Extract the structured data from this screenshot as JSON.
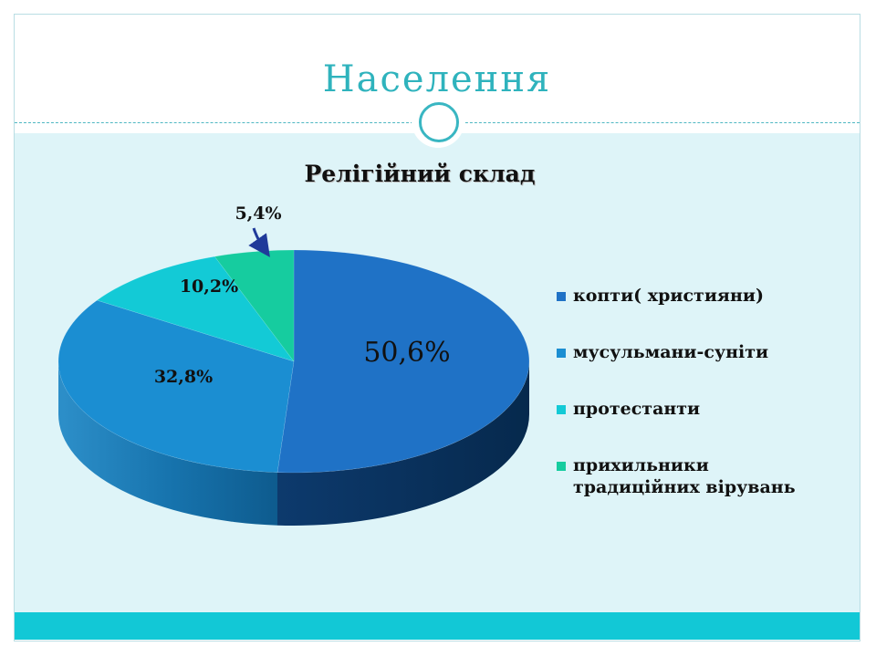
{
  "slide": {
    "title": "Населення"
  },
  "chart_data": {
    "type": "pie",
    "title": "Релігійний склад",
    "slices": [
      {
        "name": "копти( християни)",
        "value": 50.6,
        "label": "50,6%",
        "color": "#1f72c6"
      },
      {
        "name": "мусульмани-суніти",
        "value": 32.8,
        "label": "32,8%",
        "color": "#1b8ed2"
      },
      {
        "name": "протестанти",
        "value": 10.2,
        "label": "10,2%",
        "color": "#13cad6"
      },
      {
        "name": "прихильники традиційних вірувань",
        "value": 5.4,
        "label": "5,4%",
        "color": "#16cc9f"
      }
    ],
    "legend_position": "right",
    "is_3d": true
  },
  "colors": {
    "title": "#2fb3bd",
    "content_background": "#def4f8",
    "bottom_bar": "#12c8d6",
    "arrow": "#1f3a9a"
  }
}
